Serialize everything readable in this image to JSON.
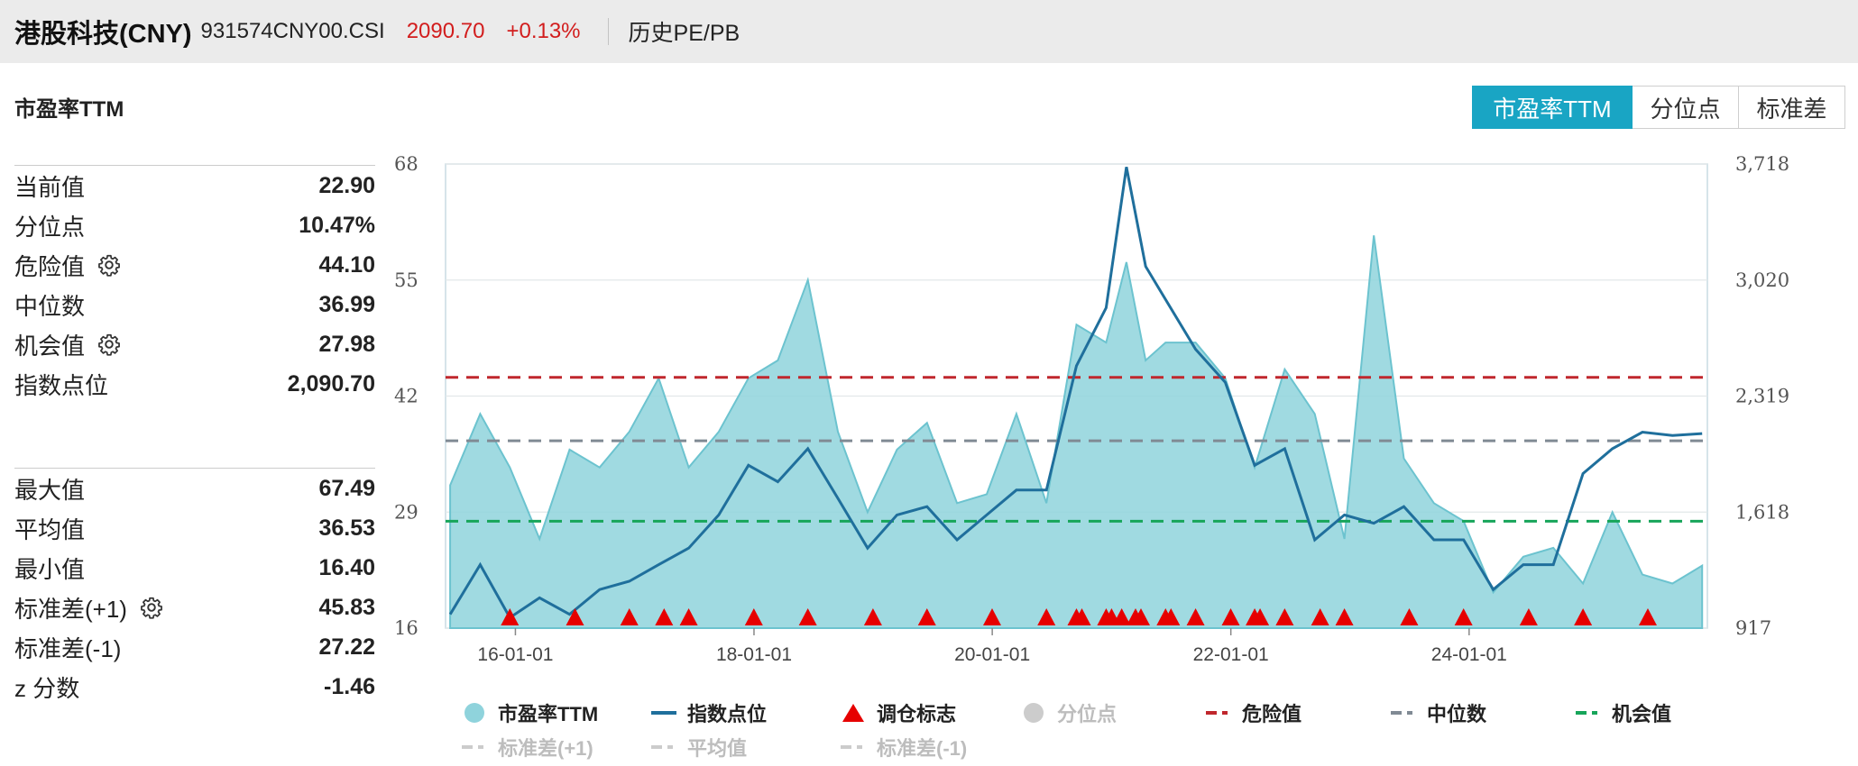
{
  "header": {
    "title": "港股科技(CNY)",
    "code": "931574CNY00.CSI",
    "price": "2090.70",
    "change": "+0.13%",
    "link": "历史PE/PB"
  },
  "section_title": "市盈率TTM",
  "tabs": [
    {
      "label": "市盈率TTM",
      "active": true
    },
    {
      "label": "分位点",
      "active": false
    },
    {
      "label": "标准差",
      "active": false
    }
  ],
  "stats_top": [
    {
      "label": "当前值",
      "value": "22.90",
      "gear": false
    },
    {
      "label": "分位点",
      "value": "10.47%",
      "gear": false
    },
    {
      "label": "危险值",
      "value": "44.10",
      "gear": true
    },
    {
      "label": "中位数",
      "value": "36.99",
      "gear": false
    },
    {
      "label": "机会值",
      "value": "27.98",
      "gear": true
    },
    {
      "label": "指数点位",
      "value": "2,090.70",
      "gear": false
    }
  ],
  "stats_bottom": [
    {
      "label": "最大值",
      "value": "67.49",
      "gear": false
    },
    {
      "label": "平均值",
      "value": "36.53",
      "gear": false
    },
    {
      "label": "最小值",
      "value": "16.40",
      "gear": false
    },
    {
      "label": "标准差(+1)",
      "value": "45.83",
      "gear": true
    },
    {
      "label": "标准差(-1)",
      "value": "27.22",
      "gear": false
    },
    {
      "label": "z 分数",
      "value": "-1.46",
      "gear": false
    }
  ],
  "legend": [
    {
      "label": "市盈率TTM",
      "symbol": "circle",
      "color": "#8fd3dc",
      "dim": false
    },
    {
      "label": "指数点位",
      "symbol": "line",
      "color": "#1f6f9c",
      "dim": false
    },
    {
      "label": "调仓标志",
      "symbol": "triangle",
      "color": "#e60000",
      "dim": false
    },
    {
      "label": "分位点",
      "symbol": "circle",
      "color": "#cccccc",
      "dim": true
    },
    {
      "label": "危险值",
      "symbol": "dash",
      "color": "#c0272d",
      "dim": false
    },
    {
      "label": "中位数",
      "symbol": "dash",
      "color": "#808a94",
      "dim": false
    },
    {
      "label": "机会值",
      "symbol": "dash",
      "color": "#17a55a",
      "dim": false
    },
    {
      "label": "标准差(+1)",
      "symbol": "dash",
      "color": "#cccccc",
      "dim": true
    },
    {
      "label": "平均值",
      "symbol": "dash",
      "color": "#cccccc",
      "dim": true
    },
    {
      "label": "标准差(-1)",
      "symbol": "dash",
      "color": "#cccccc",
      "dim": true
    }
  ],
  "chart_data": {
    "type": "area",
    "left_axis": {
      "ticks": [
        "68",
        "55",
        "42",
        "29",
        "16"
      ],
      "min": 16,
      "max": 68
    },
    "right_axis": {
      "ticks": [
        "3,718",
        "3,020",
        "2,319",
        "1,618",
        "917"
      ],
      "min": 917,
      "max": 3718
    },
    "x_ticks": [
      "16-01-01",
      "18-01-01",
      "20-01-01",
      "22-01-01",
      "24-01-01"
    ],
    "x_range": [
      "2015-06-01",
      "2025-12-31"
    ],
    "reference_lines": {
      "danger": 44.1,
      "median": 36.99,
      "opportunity": 27.98,
      "colors": {
        "danger": "#c0272d",
        "median": "#808a94",
        "opportunity": "#17a55a"
      }
    },
    "series": [
      {
        "name": "市盈率TTM",
        "color": "#8fd3dc",
        "x": [
          "2015-06",
          "2015-09",
          "2015-12",
          "2016-03",
          "2016-06",
          "2016-09",
          "2016-12",
          "2017-03",
          "2017-06",
          "2017-09",
          "2017-12",
          "2018-03",
          "2018-06",
          "2018-09",
          "2018-12",
          "2019-03",
          "2019-06",
          "2019-09",
          "2019-12",
          "2020-03",
          "2020-06",
          "2020-09",
          "2020-12",
          "2021-02",
          "2021-04",
          "2021-06",
          "2021-09",
          "2021-12",
          "2022-03",
          "2022-06",
          "2022-09",
          "2022-12",
          "2023-03",
          "2023-06",
          "2023-09",
          "2023-12",
          "2024-03",
          "2024-06",
          "2024-09",
          "2024-12",
          "2025-03",
          "2025-06",
          "2025-09",
          "2025-12"
        ],
        "values": [
          32,
          40,
          34,
          26,
          36,
          34,
          38,
          44,
          34,
          38,
          44,
          46,
          55,
          38,
          29,
          36,
          39,
          30,
          31,
          40,
          30,
          50,
          48,
          57,
          46,
          48,
          48,
          44,
          34,
          45,
          40,
          26,
          60,
          35,
          30,
          28,
          20,
          24,
          25,
          21,
          29,
          22,
          21,
          23
        ]
      },
      {
        "name": "指数点位",
        "color": "#1f6f9c",
        "x": [
          "2015-06",
          "2015-09",
          "2015-12",
          "2016-03",
          "2016-06",
          "2016-09",
          "2016-12",
          "2017-03",
          "2017-06",
          "2017-09",
          "2017-12",
          "2018-03",
          "2018-06",
          "2018-09",
          "2018-12",
          "2019-03",
          "2019-06",
          "2019-09",
          "2019-12",
          "2020-03",
          "2020-06",
          "2020-09",
          "2020-12",
          "2021-02",
          "2021-04",
          "2021-06",
          "2021-09",
          "2021-12",
          "2022-03",
          "2022-06",
          "2022-09",
          "2022-12",
          "2023-03",
          "2023-06",
          "2023-09",
          "2023-12",
          "2024-03",
          "2024-06",
          "2024-09",
          "2024-12",
          "2025-03",
          "2025-06",
          "2025-09",
          "2025-12"
        ],
        "values": [
          1000,
          1300,
          980,
          1100,
          1000,
          1150,
          1200,
          1300,
          1400,
          1600,
          1900,
          1800,
          2000,
          1700,
          1400,
          1600,
          1650,
          1450,
          1600,
          1750,
          1750,
          2500,
          2850,
          3700,
          3100,
          2900,
          2600,
          2400,
          1900,
          2000,
          1450,
          1600,
          1550,
          1650,
          1450,
          1450,
          1150,
          1300,
          1300,
          1850,
          2000,
          2100,
          2080,
          2091
        ]
      }
    ],
    "rebalance_markers": [
      "2015-12",
      "2016-06",
      "2016-12",
      "2017-03",
      "2017-06",
      "2017-12",
      "2018-06",
      "2018-12",
      "2019-06",
      "2019-12",
      "2020-06",
      "2020-09",
      "2020-09",
      "2020-12",
      "2020-12",
      "2021-01",
      "2021-03",
      "2021-03",
      "2021-06",
      "2021-06",
      "2021-09",
      "2021-12",
      "2022-03",
      "2022-03",
      "2022-06",
      "2022-09",
      "2022-12",
      "2023-06",
      "2023-12",
      "2024-06",
      "2024-12",
      "2025-06"
    ]
  }
}
